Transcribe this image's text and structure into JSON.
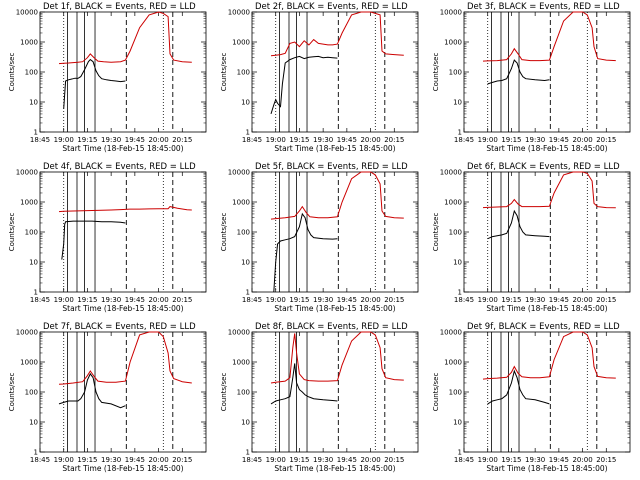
{
  "chart_data": [
    {
      "type": "line",
      "title": "Det 1f, BLACK = Events, RED = LLD",
      "xlabel": "Start Time (18-Feb-15 18:45:00)",
      "ylabel": "Counts/sec",
      "yscale": "log",
      "ylim": [
        1,
        10000
      ],
      "xticks": [
        "18:45",
        "19:00",
        "19:15",
        "19:30",
        "19:45",
        "20:00",
        "20:15"
      ],
      "yticks": [
        "1",
        "10",
        "100",
        "1000",
        "10000"
      ],
      "series": [
        {
          "color": "#000000",
          "x": [
            19.0,
            19.02,
            19.05,
            19.08,
            19.1,
            19.12,
            19.15,
            19.18,
            19.22,
            19.26,
            19.28,
            19.31,
            19.34,
            19.37,
            19.4,
            19.45,
            19.5,
            19.55,
            19.6,
            19.65
          ],
          "y": [
            6,
            50,
            55,
            58,
            60,
            62,
            61,
            70,
            120,
            220,
            260,
            220,
            110,
            75,
            60,
            55,
            52,
            50,
            48,
            50
          ]
        },
        {
          "color": "#cc0000",
          "x": [
            18.95,
            19.0,
            19.05,
            19.1,
            19.15,
            19.2,
            19.25,
            19.28,
            19.32,
            19.36,
            19.42,
            19.5,
            19.6,
            19.65,
            19.7,
            19.8,
            19.9,
            20.0,
            20.05,
            20.1,
            20.12,
            20.16,
            20.25,
            20.35
          ],
          "y": [
            190,
            195,
            200,
            205,
            210,
            220,
            300,
            400,
            300,
            230,
            220,
            210,
            220,
            250,
            500,
            3000,
            8000,
            10000,
            9000,
            7000,
            400,
            250,
            220,
            210
          ]
        }
      ]
    },
    {
      "type": "line",
      "title": "Det 2f, BLACK = Events, RED = LLD",
      "xlabel": "Start Time (18-Feb-15 18:45:00)",
      "ylabel": "Counts/sec",
      "yscale": "log",
      "ylim": [
        1,
        10000
      ],
      "xticks": [
        "18:45",
        "19:00",
        "19:15",
        "19:30",
        "19:45",
        "20:00",
        "20:15"
      ],
      "yticks": [
        "1",
        "10",
        "100",
        "1000",
        "10000"
      ],
      "series": [
        {
          "color": "#000000",
          "x": [
            18.95,
            18.98,
            19.0,
            19.02,
            19.05,
            19.07,
            19.1,
            19.15,
            19.2,
            19.25,
            19.3,
            19.35,
            19.4,
            19.45,
            19.5,
            19.55,
            19.6,
            19.65
          ],
          "y": [
            4,
            8,
            12,
            9,
            7,
            40,
            200,
            260,
            300,
            330,
            280,
            310,
            320,
            330,
            300,
            310,
            300,
            290
          ]
        },
        {
          "color": "#cc0000",
          "x": [
            18.95,
            19.0,
            19.05,
            19.1,
            19.15,
            19.2,
            19.25,
            19.3,
            19.35,
            19.4,
            19.45,
            19.5,
            19.55,
            19.6,
            19.65,
            19.7,
            19.8,
            19.9,
            20.0,
            20.05,
            20.1,
            20.12,
            20.16,
            20.25,
            20.35
          ],
          "y": [
            350,
            360,
            380,
            420,
            900,
            1000,
            700,
            1100,
            800,
            1200,
            900,
            850,
            800,
            800,
            850,
            2000,
            8000,
            10000,
            10000,
            9000,
            8000,
            500,
            400,
            380,
            360
          ]
        }
      ]
    },
    {
      "type": "line",
      "title": "Det 3f, BLACK = Events, RED = LLD",
      "xlabel": "Start Time (18-Feb-15 18:45:00)",
      "ylabel": "Counts/sec",
      "yscale": "log",
      "ylim": [
        1,
        10000
      ],
      "xticks": [
        "18:45",
        "19:00",
        "19:15",
        "19:30",
        "19:45",
        "20:00",
        "20:15"
      ],
      "yticks": [
        "1",
        "10",
        "100",
        "1000",
        "10000"
      ],
      "series": [
        {
          "color": "#000000",
          "x": [
            19.0,
            19.05,
            19.1,
            19.15,
            19.2,
            19.25,
            19.28,
            19.31,
            19.34,
            19.37,
            19.4,
            19.5,
            19.6,
            19.65
          ],
          "y": [
            40,
            45,
            50,
            52,
            60,
            130,
            250,
            200,
            100,
            70,
            60,
            55,
            52,
            55
          ]
        },
        {
          "color": "#cc0000",
          "x": [
            18.95,
            19.0,
            19.1,
            19.2,
            19.25,
            19.28,
            19.32,
            19.36,
            19.45,
            19.55,
            19.65,
            19.7,
            19.8,
            19.9,
            20.0,
            20.05,
            20.1,
            20.12,
            20.16,
            20.25,
            20.35
          ],
          "y": [
            230,
            235,
            240,
            260,
            400,
            600,
            400,
            260,
            240,
            240,
            250,
            700,
            5000,
            10000,
            10000,
            8000,
            3000,
            700,
            280,
            250,
            240
          ]
        }
      ]
    },
    {
      "type": "line",
      "title": "Det 4f, BLACK = Events, RED = LLD",
      "xlabel": "Start Time (18-Feb-15 18:45:00)",
      "ylabel": "Counts/sec",
      "yscale": "log",
      "ylim": [
        1,
        10000
      ],
      "xticks": [
        "18:45",
        "19:00",
        "19:15",
        "19:30",
        "19:45",
        "20:00",
        "20:15"
      ],
      "yticks": [
        "1",
        "10",
        "100",
        "1000",
        "10000"
      ],
      "series": [
        {
          "color": "#000000",
          "x": [
            18.98,
            19.0,
            19.01,
            19.02,
            19.1,
            19.2,
            19.3,
            19.4,
            19.5,
            19.6,
            19.65
          ],
          "y": [
            12,
            40,
            180,
            220,
            230,
            230,
            230,
            220,
            220,
            210,
            200
          ]
        },
        {
          "color": "#cc0000",
          "x": [
            18.95,
            19.0,
            19.1,
            19.2,
            19.3,
            19.4,
            19.5,
            19.6,
            19.7,
            19.8,
            19.9,
            20.0,
            20.1,
            20.12,
            20.2,
            20.3,
            20.35
          ],
          "y": [
            480,
            490,
            500,
            510,
            520,
            530,
            540,
            560,
            580,
            580,
            590,
            600,
            600,
            700,
            620,
            550,
            540
          ]
        }
      ]
    },
    {
      "type": "line",
      "title": "Det 5f, BLACK = Events, RED = LLD",
      "xlabel": "Start Time (18-Feb-15 18:45:00)",
      "ylabel": "Counts/sec",
      "yscale": "log",
      "ylim": [
        1,
        10000
      ],
      "xticks": [
        "18:45",
        "19:00",
        "19:15",
        "19:30",
        "19:45",
        "20:00",
        "20:15"
      ],
      "yticks": [
        "1",
        "10",
        "100",
        "1000",
        "10000"
      ],
      "series": [
        {
          "color": "#000000",
          "x": [
            18.98,
            19.0,
            19.02,
            19.05,
            19.1,
            19.15,
            19.2,
            19.25,
            19.28,
            19.31,
            19.34,
            19.37,
            19.4,
            19.5,
            19.6,
            19.65
          ],
          "y": [
            1,
            10,
            40,
            50,
            55,
            60,
            70,
            150,
            400,
            300,
            120,
            80,
            65,
            60,
            58,
            60
          ]
        },
        {
          "color": "#cc0000",
          "x": [
            18.95,
            19.0,
            19.1,
            19.2,
            19.25,
            19.28,
            19.32,
            19.36,
            19.45,
            19.55,
            19.65,
            19.7,
            19.8,
            19.9,
            20.0,
            20.05,
            20.1,
            20.12,
            20.16,
            20.25,
            20.35
          ],
          "y": [
            270,
            280,
            300,
            330,
            500,
            700,
            450,
            320,
            300,
            300,
            320,
            1000,
            6000,
            10000,
            10000,
            8000,
            4000,
            500,
            330,
            300,
            290
          ]
        }
      ]
    },
    {
      "type": "line",
      "title": "Det 6f, BLACK = Events, RED = LLD",
      "xlabel": "Start Time (18-Feb-15 18:45:00)",
      "ylabel": "Counts/sec",
      "yscale": "log",
      "ylim": [
        1,
        10000
      ],
      "xticks": [
        "18:45",
        "19:00",
        "19:15",
        "19:30",
        "19:45",
        "20:00",
        "20:15"
      ],
      "yticks": [
        "1",
        "10",
        "100",
        "1000",
        "10000"
      ],
      "series": [
        {
          "color": "#000000",
          "x": [
            19.0,
            19.05,
            19.1,
            19.15,
            19.2,
            19.25,
            19.28,
            19.31,
            19.34,
            19.37,
            19.4,
            19.5,
            19.6,
            19.65
          ],
          "y": [
            60,
            70,
            75,
            80,
            90,
            200,
            500,
            350,
            150,
            100,
            80,
            75,
            72,
            70
          ]
        },
        {
          "color": "#cc0000",
          "x": [
            18.95,
            19.0,
            19.1,
            19.2,
            19.25,
            19.28,
            19.32,
            19.36,
            19.45,
            19.55,
            19.65,
            19.7,
            19.8,
            19.9,
            20.0,
            20.05,
            20.1,
            20.12,
            20.16,
            20.25,
            20.35
          ],
          "y": [
            650,
            660,
            680,
            700,
            900,
            1200,
            850,
            700,
            700,
            700,
            720,
            2000,
            8000,
            10000,
            10000,
            9000,
            5000,
            900,
            700,
            650,
            640
          ]
        }
      ]
    },
    {
      "type": "line",
      "title": "Det 7f, BLACK = Events, RED = LLD",
      "xlabel": "Start Time (18-Feb-15 18:45:00)",
      "ylabel": "Counts/sec",
      "yscale": "log",
      "ylim": [
        1,
        10000
      ],
      "xticks": [
        "18:45",
        "19:00",
        "19:15",
        "19:30",
        "19:45",
        "20:00",
        "20:15"
      ],
      "yticks": [
        "1",
        "10",
        "100",
        "1000",
        "10000"
      ],
      "series": [
        {
          "color": "#000000",
          "x": [
            18.95,
            19.0,
            19.05,
            19.1,
            19.15,
            19.18,
            19.22,
            19.25,
            19.28,
            19.31,
            19.34,
            19.37,
            19.4,
            19.5,
            19.6,
            19.65
          ],
          "y": [
            40,
            45,
            50,
            50,
            50,
            60,
            100,
            250,
            400,
            300,
            100,
            60,
            45,
            40,
            30,
            35
          ]
        },
        {
          "color": "#cc0000",
          "x": [
            18.95,
            19.0,
            19.1,
            19.2,
            19.25,
            19.28,
            19.32,
            19.36,
            19.45,
            19.55,
            19.65,
            19.7,
            19.8,
            19.9,
            20.0,
            20.05,
            20.1,
            20.12,
            20.16,
            20.25,
            20.35
          ],
          "y": [
            180,
            185,
            200,
            220,
            350,
            500,
            330,
            230,
            210,
            210,
            230,
            1000,
            8000,
            10000,
            10000,
            7000,
            2000,
            500,
            280,
            220,
            200
          ]
        }
      ]
    },
    {
      "type": "line",
      "title": "Det 8f, BLACK = Events, RED = LLD",
      "xlabel": "Start Time (18-Feb-15 18:45:00)",
      "ylabel": "Counts/sec",
      "yscale": "log",
      "ylim": [
        1,
        10000
      ],
      "xticks": [
        "18:45",
        "19:00",
        "19:15",
        "19:30",
        "19:45",
        "20:00",
        "20:15"
      ],
      "yticks": [
        "1",
        "10",
        "100",
        "1000",
        "10000"
      ],
      "series": [
        {
          "color": "#000000",
          "x": [
            18.95,
            19.0,
            19.05,
            19.1,
            19.15,
            19.18,
            19.2,
            19.22,
            19.25,
            19.28,
            19.31,
            19.34,
            19.37,
            19.4,
            19.5,
            19.6,
            19.65
          ],
          "y": [
            40,
            50,
            55,
            60,
            70,
            300,
            900,
            200,
            120,
            100,
            80,
            70,
            65,
            60,
            55,
            52,
            50
          ]
        },
        {
          "color": "#cc0000",
          "x": [
            18.95,
            19.0,
            19.1,
            19.15,
            19.18,
            19.2,
            19.22,
            19.25,
            19.3,
            19.35,
            19.45,
            19.55,
            19.65,
            19.7,
            19.8,
            19.9,
            20.0,
            20.05,
            20.1,
            20.12,
            20.16,
            20.25,
            20.35
          ],
          "y": [
            200,
            210,
            230,
            300,
            3000,
            9000,
            2000,
            400,
            260,
            240,
            230,
            230,
            240,
            800,
            5000,
            10000,
            10000,
            8000,
            3000,
            600,
            300,
            260,
            250
          ]
        }
      ]
    },
    {
      "type": "line",
      "title": "Det 9f, BLACK = Events, RED = LLD",
      "xlabel": "Start Time (18-Feb-15 18:45:00)",
      "ylabel": "Counts/sec",
      "yscale": "log",
      "ylim": [
        1,
        10000
      ],
      "xticks": [
        "18:45",
        "19:00",
        "19:15",
        "19:30",
        "19:45",
        "20:00",
        "20:15"
      ],
      "yticks": [
        "1",
        "10",
        "100",
        "1000",
        "10000"
      ],
      "series": [
        {
          "color": "#000000",
          "x": [
            19.0,
            19.05,
            19.1,
            19.15,
            19.2,
            19.25,
            19.28,
            19.31,
            19.34,
            19.37,
            19.4,
            19.5,
            19.6,
            19.65
          ],
          "y": [
            40,
            50,
            55,
            60,
            80,
            200,
            500,
            300,
            120,
            80,
            60,
            55,
            45,
            40
          ]
        },
        {
          "color": "#cc0000",
          "x": [
            18.95,
            19.0,
            19.1,
            19.2,
            19.25,
            19.28,
            19.32,
            19.36,
            19.45,
            19.55,
            19.65,
            19.7,
            19.8,
            19.9,
            20.0,
            20.05,
            20.1,
            20.12,
            20.16,
            20.25,
            20.35
          ],
          "y": [
            270,
            280,
            290,
            310,
            450,
            700,
            420,
            320,
            300,
            300,
            320,
            1200,
            7000,
            10000,
            10000,
            8000,
            3000,
            700,
            330,
            300,
            290
          ]
        }
      ]
    }
  ]
}
